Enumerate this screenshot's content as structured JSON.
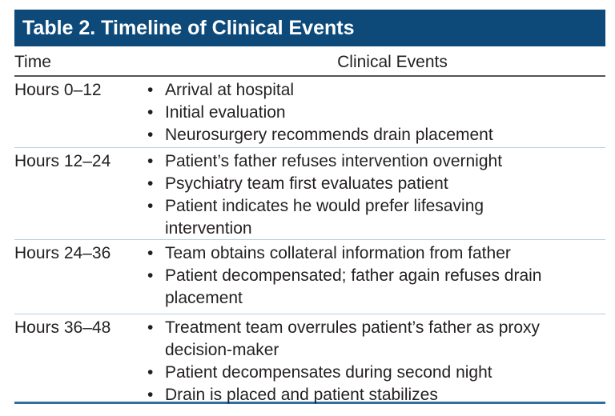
{
  "title": "Table 2. Timeline of Clinical Events",
  "columns": [
    "Time",
    "Clinical Events"
  ],
  "rows": [
    {
      "time": "Hours 0–12",
      "events": [
        "Arrival at hospital",
        "Initial evaluation",
        "Neurosurgery recommends drain placement"
      ]
    },
    {
      "time": "Hours 12–24",
      "events": [
        "Patient’s father refuses intervention overnight",
        "Psychiatry team first evaluates patient",
        "Patient indicates he would prefer lifesaving\nintervention"
      ]
    },
    {
      "time": "Hours 24–36",
      "events": [
        "Team obtains collateral information from father",
        "Patient decompensated; father again refuses drain\nplacement"
      ]
    },
    {
      "time": "Hours 36–48",
      "events": [
        "Treatment team overrules patient’s father as proxy\ndecision-maker",
        "Patient decompensates during second night",
        "Drain is placed and patient stabilizes"
      ]
    }
  ],
  "bullet": "•",
  "colors": {
    "header": "#0d4a7a",
    "row_divider": "#b8cfe0",
    "bottom_rule": "#2e6f9e"
  }
}
